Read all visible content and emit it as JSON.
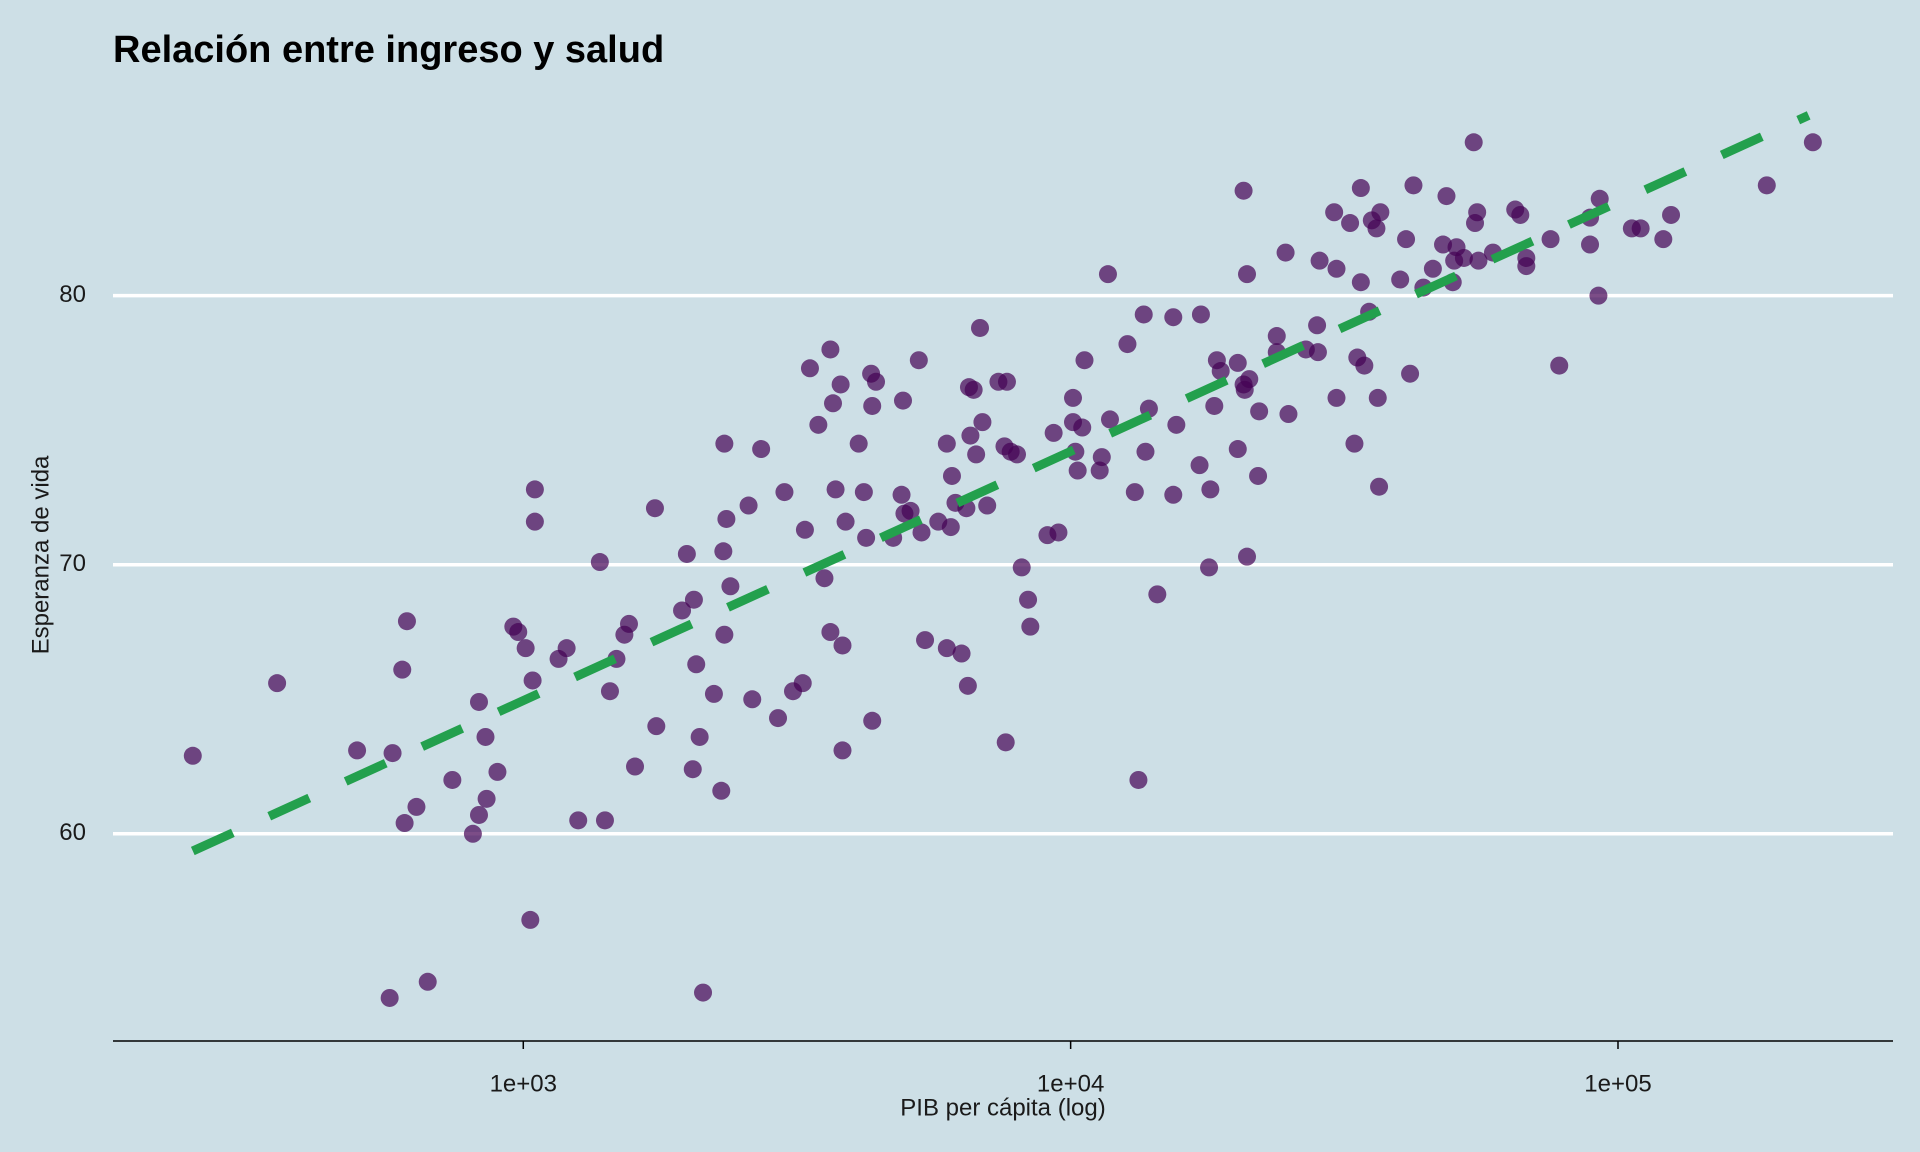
{
  "chart_data": {
    "type": "scatter",
    "title": "Relación entre ingreso y salud",
    "x_label": "PIB per cápita (log)",
    "y_label": "Esperanza de vida",
    "x_scale": "log",
    "grid": true,
    "color": "#440154",
    "opacity": 0.7,
    "x": [
      249,
      355,
      497,
      570,
      577,
      601,
      613,
      607,
      638,
      669,
      742,
      809,
      830,
      830,
      853,
      857,
      897,
      959,
      979,
      1010,
      1030,
      1040,
      1050,
      1050,
      1160,
      1200,
      1260,
      1380,
      1410,
      1440,
      1480,
      1530,
      1560,
      1600,
      1740,
      1750,
      1950,
      1990,
      2040,
      2050,
      2070,
      2100,
      2130,
      2230,
      2300,
      2320,
      2330,
      2330,
      2350,
      2390,
      2580,
      2620,
      2720,
      2920,
      3000,
      3110,
      3240,
      3270,
      3340,
      3460,
      3550,
      3640,
      3640,
      3680,
      3720,
      3800,
      3830,
      3830,
      3880,
      4100,
      4190,
      4230,
      4320,
      4340,
      4340,
      4410,
      4740,
      4910,
      4940,
      4970,
      5100,
      5280,
      5340,
      5420,
      5730,
      5940,
      5940,
      6040,
      6070,
      6160,
      6320,
      6450,
      6490,
      6520,
      6560,
      6650,
      6720,
      6830,
      6900,
      7040,
      7380,
      7570,
      7610,
      7650,
      7770,
      7980,
      8140,
      8360,
      8440,
      9070,
      9310,
      9500,
      10100,
      10100,
      10200,
      10300,
      10500,
      10600,
      11300,
      11400,
      11700,
      11800,
      12700,
      13100,
      13300,
      13600,
      13700,
      13900,
      14400,
      15400,
      15400,
      15600,
      17200,
      17300,
      17900,
      18000,
      18300,
      18500,
      18800,
      20200,
      20200,
      20700,
      20700,
      20800,
      21000,
      21000,
      21200,
      22000,
      22100,
      23800,
      23800,
      24700,
      25000,
      26900,
      28200,
      28300,
      28500,
      30300,
      30600,
      30600,
      32400,
      33000,
      33400,
      33900,
      33900,
      34400,
      35100,
      35500,
      36200,
      36400,
      36600,
      36800,
      40000,
      41000,
      41700,
      42300,
      44100,
      45900,
      47900,
      48600,
      49900,
      50200,
      50700,
      52300,
      54500,
      54800,
      55300,
      55600,
      59100,
      64900,
      66300,
      68000,
      68000,
      75300,
      78100,
      88900,
      88900,
      92600,
      92100,
      106000,
      110000,
      121000,
      125000,
      187000,
      227000
    ],
    "values": [
      62.9,
      65.6,
      63.1,
      53.9,
      63.0,
      66.1,
      67.9,
      60.4,
      61.0,
      54.5,
      62.0,
      60.0,
      60.7,
      64.9,
      63.6,
      61.3,
      62.3,
      67.7,
      67.5,
      66.9,
      56.8,
      65.7,
      72.8,
      71.6,
      66.5,
      66.9,
      60.5,
      70.1,
      60.5,
      65.3,
      66.5,
      67.4,
      67.8,
      62.5,
      72.1,
      64.0,
      68.3,
      70.4,
      62.4,
      68.7,
      66.3,
      63.6,
      54.1,
      65.2,
      61.6,
      70.5,
      74.5,
      67.4,
      71.7,
      69.2,
      72.2,
      65.0,
      74.3,
      64.3,
      72.7,
      65.3,
      65.6,
      71.3,
      77.3,
      75.2,
      69.5,
      78.0,
      67.5,
      76.0,
      72.8,
      76.7,
      63.1,
      67.0,
      71.6,
      74.5,
      72.7,
      71.0,
      77.1,
      64.2,
      75.9,
      76.8,
      71.0,
      72.6,
      76.1,
      71.9,
      72.0,
      77.6,
      71.2,
      67.2,
      71.6,
      74.5,
      66.9,
      71.4,
      73.3,
      72.3,
      66.7,
      72.1,
      65.5,
      76.6,
      74.8,
      76.5,
      74.1,
      78.8,
      75.3,
      72.2,
      76.8,
      74.4,
      63.4,
      76.8,
      74.2,
      74.1,
      69.9,
      68.7,
      67.7,
      71.1,
      74.9,
      71.2,
      76.2,
      75.3,
      74.2,
      73.5,
      75.1,
      77.6,
      73.5,
      74.0,
      80.8,
      75.4,
      78.2,
      72.7,
      62.0,
      79.3,
      74.2,
      75.8,
      68.9,
      79.2,
      72.6,
      75.2,
      73.7,
      79.3,
      69.9,
      72.8,
      75.9,
      77.6,
      77.2,
      74.3,
      77.5,
      83.9,
      76.7,
      76.5,
      80.8,
      70.3,
      76.9,
      73.3,
      75.7,
      78.5,
      77.9,
      81.6,
      75.6,
      78.0,
      78.9,
      77.9,
      81.3,
      83.1,
      81.0,
      76.2,
      82.7,
      74.5,
      77.7,
      84.0,
      80.5,
      77.4,
      79.4,
      82.8,
      82.5,
      76.2,
      72.9,
      83.1,
      80.6,
      82.1,
      77.1,
      84.1,
      80.3,
      81.0,
      81.9,
      83.7,
      80.5,
      81.3,
      81.8,
      81.4,
      85.7,
      82.7,
      83.1,
      81.3,
      81.6,
      83.2,
      83.0,
      81.4,
      81.1,
      82.1,
      77.4,
      82.9,
      81.9,
      83.6,
      80.0,
      82.5,
      82.5,
      82.1,
      83.0,
      84.1,
      85.7
    ],
    "trend": {
      "x": [
        249,
        223000
      ],
      "values": [
        59.36,
        86.7
      ],
      "color": "#23a04d",
      "dashed": true
    },
    "xlim": [
      178,
      318000
    ],
    "ylim": [
      52.3,
      86.9
    ],
    "xticks": [
      {
        "value": 1000,
        "label": "1e+03"
      },
      {
        "value": 10000,
        "label": "1e+04"
      },
      {
        "value": 100000,
        "label": "1e+05"
      }
    ],
    "yticks": [
      60,
      70,
      80
    ]
  }
}
